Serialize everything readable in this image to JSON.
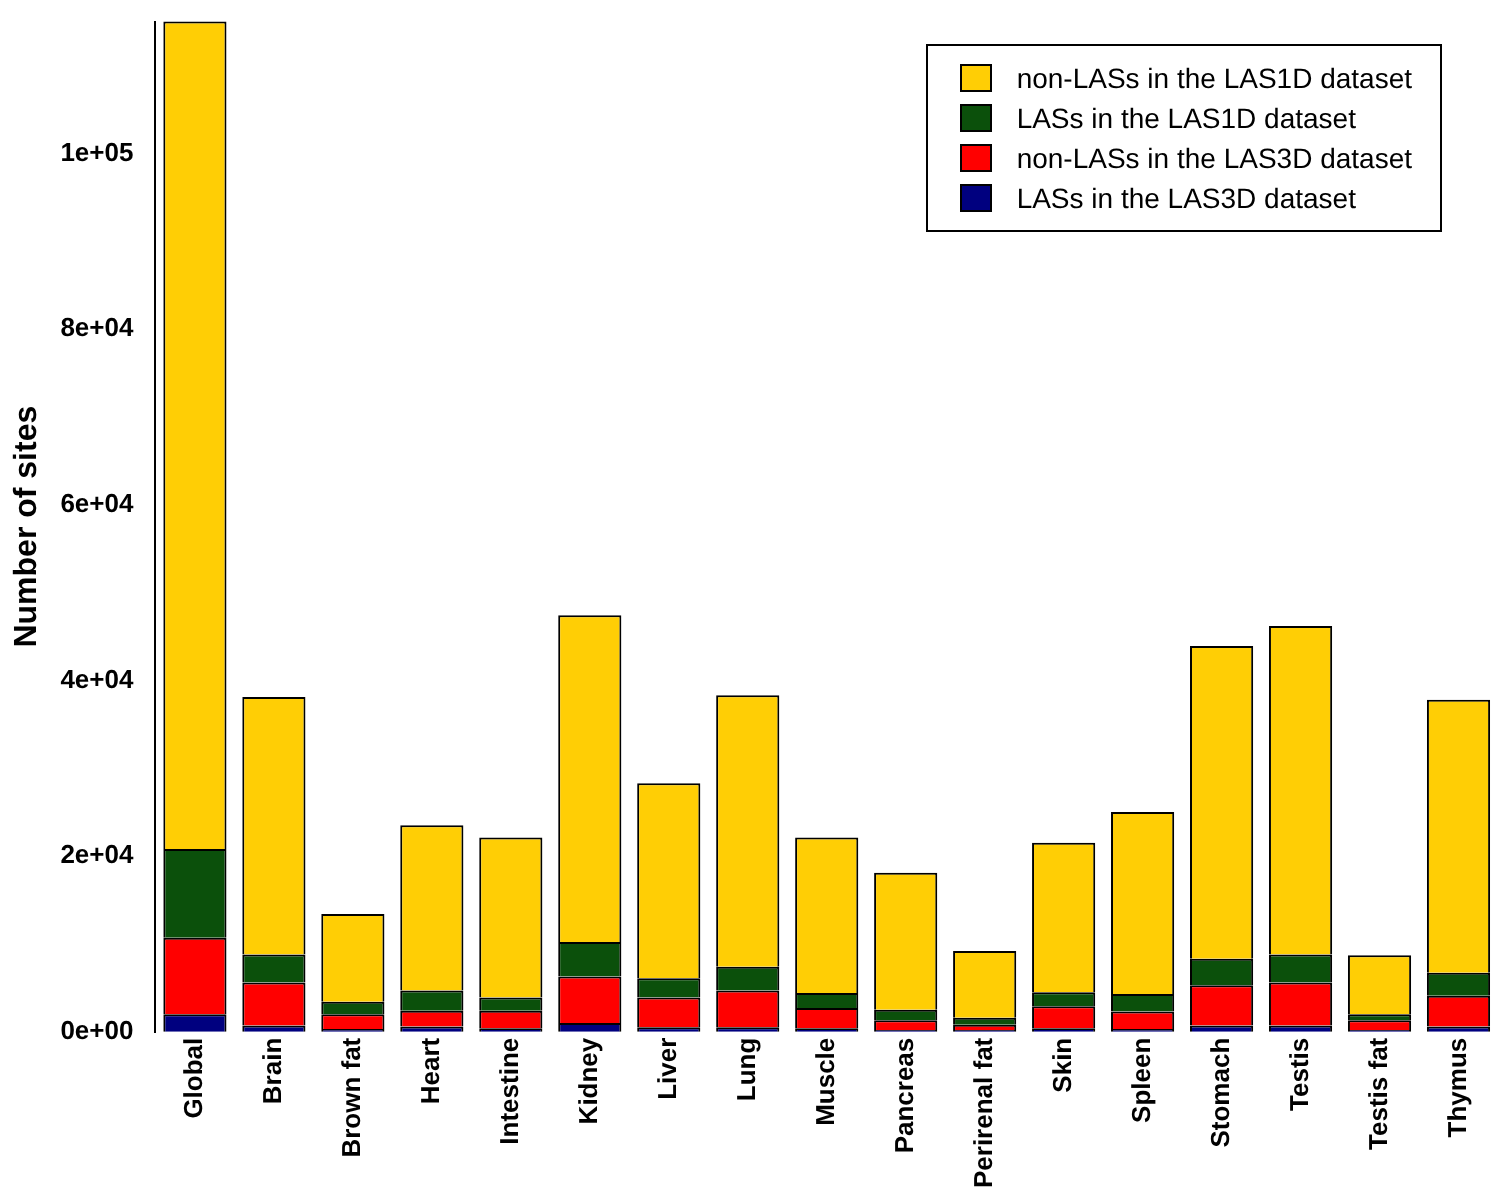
{
  "chart_data": {
    "type": "bar",
    "ylabel": "Number of sites",
    "stacked": true,
    "categories": [
      "Global",
      "Brain",
      "Brown fat",
      "Heart",
      "Intestine",
      "Kidney",
      "Liver",
      "Lung",
      "Muscle",
      "Pancreas",
      "Perirenal fat",
      "Skin",
      "Spleen",
      "Stomach",
      "Testis",
      "Testis fat",
      "Thymus"
    ],
    "series": [
      {
        "name": "LASs in the LAS3D dataset",
        "color": "#00007f",
        "values": [
          2000,
          700,
          300,
          600,
          400,
          1000,
          500,
          500,
          400,
          200,
          200,
          400,
          300,
          700,
          700,
          200,
          600
        ]
      },
      {
        "name": "non-LASs in the LAS3D dataset",
        "color": "#ff0000",
        "values": [
          8700,
          4900,
          1700,
          1800,
          2000,
          5300,
          3400,
          4200,
          2300,
          1100,
          600,
          2500,
          2000,
          4600,
          4900,
          1100,
          3500
        ]
      },
      {
        "name": "LASs in the LAS1D dataset",
        "color": "#0b500b",
        "values": [
          10100,
          3200,
          1400,
          2300,
          1500,
          3900,
          2200,
          2700,
          1700,
          1200,
          800,
          1600,
          2000,
          3000,
          3200,
          700,
          2600
        ]
      },
      {
        "name": "non-LASs in the LAS1D dataset",
        "color": "#ffce05",
        "values": [
          94200,
          29300,
          10000,
          18800,
          18200,
          37200,
          22200,
          30900,
          17700,
          15600,
          7600,
          17000,
          20700,
          35600,
          37400,
          6700,
          31100
        ]
      }
    ],
    "ylim": [
      0,
      115000
    ],
    "yticks": [
      {
        "value": 0,
        "label": "0e+00"
      },
      {
        "value": 20000,
        "label": "2e+04"
      },
      {
        "value": 40000,
        "label": "4e+04"
      },
      {
        "value": 60000,
        "label": "6e+04"
      },
      {
        "value": 80000,
        "label": "8e+04"
      },
      {
        "value": 100000,
        "label": "1e+05"
      }
    ],
    "grid": false,
    "legend": "top right"
  }
}
